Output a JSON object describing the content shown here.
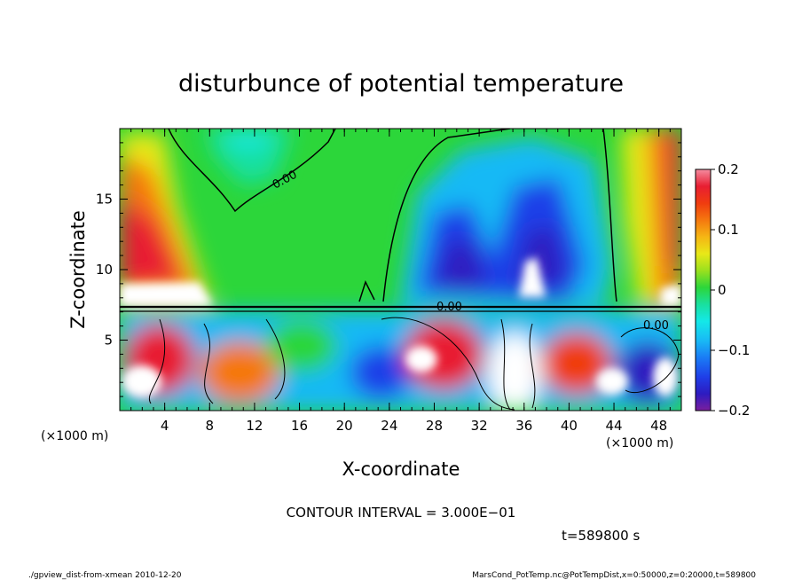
{
  "chart_data": {
    "type": "heatmap",
    "title": "disturbunce of potential temperature",
    "xlabel": "X-coordinate",
    "ylabel": "Z-coordinate",
    "x_unit": "(×1000 m)",
    "y_unit": "(×1000 m)",
    "xlim": [
      0,
      50
    ],
    "ylim": [
      0,
      20
    ],
    "x_ticks": [
      4,
      8,
      12,
      16,
      20,
      24,
      28,
      32,
      36,
      40,
      44,
      48
    ],
    "y_ticks": [
      5,
      10,
      15
    ],
    "colorbar": {
      "range": [
        -0.2,
        0.2
      ],
      "tick_values": [
        0.2,
        0.1,
        0,
        -0.1,
        -0.2
      ],
      "tick_labels": [
        "0.2",
        "0.1",
        "0",
        "−0.1",
        "−0.2"
      ],
      "colors": [
        "#7a1f9e",
        "#2d1bc0",
        "#1f3fe8",
        "#1a7cf5",
        "#19b9f5",
        "#14e8e8",
        "#19e0a0",
        "#2cd63a",
        "#9ae01e",
        "#e8e818",
        "#f5b614",
        "#f5780f",
        "#f03c0f",
        "#e81e32",
        "#f58ca0",
        "#ffffff"
      ]
    },
    "contour_labels": [
      "0.00",
      "0.00",
      "0.00"
    ],
    "contour_interval_text": "CONTOUR INTERVAL = 3.000E−01",
    "time_text": "t=589800 s"
  },
  "footer": {
    "left": "./gpview_dist-from-xmean  2010-12-20",
    "right": "MarsCond_PotTemp.nc@PotTempDist,x=0:50000,z=0:20000,t=589800"
  }
}
